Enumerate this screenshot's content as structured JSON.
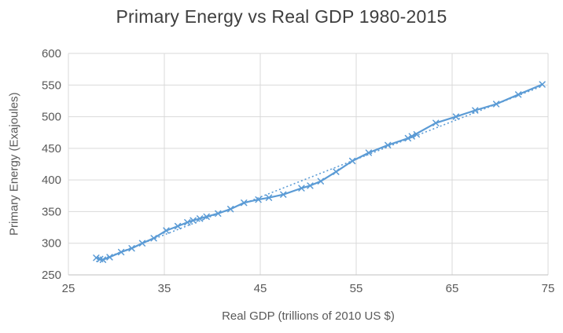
{
  "styles": {
    "accent": "#5B9BD5",
    "grid_color": "#D9D9D9",
    "axis_color": "#BFBFBF",
    "text_color": "#595959",
    "title_color": "#3F3F3F"
  },
  "chart_data": {
    "type": "scatter",
    "title": "Primary Energy vs Real GDP 1980-2015",
    "xlabel": "Real GDP (trillions of 2010 US $)",
    "ylabel": "Primary Energy (Exajoules)",
    "xlim": [
      25,
      75
    ],
    "ylim": [
      250,
      600
    ],
    "x_ticks": [
      25,
      35,
      45,
      55,
      65,
      75
    ],
    "y_ticks": [
      250,
      300,
      350,
      400,
      450,
      500,
      550,
      600
    ],
    "grid": true,
    "legend": false,
    "series": [
      {
        "name": "Primary Energy vs Real GDP 1980-2015",
        "color": "#5B9BD5",
        "marker": "x",
        "line_style": "solid",
        "x": [
          27.9,
          28.3,
          28.6,
          29.3,
          30.5,
          31.6,
          32.7,
          33.9,
          35.2,
          36.4,
          37.4,
          38.0,
          38.7,
          39.4,
          40.6,
          41.9,
          43.3,
          44.8,
          45.9,
          47.4,
          49.3,
          50.2,
          51.3,
          52.9,
          54.6,
          56.3,
          58.3,
          60.4,
          61.3,
          60.8,
          63.3,
          65.4,
          67.4,
          69.6,
          71.9,
          74.4
        ],
        "y": [
          277,
          275,
          274,
          278,
          286,
          292,
          300,
          308,
          320,
          327,
          333,
          336,
          339,
          342,
          347,
          354,
          364,
          369,
          372,
          377,
          387,
          391,
          398,
          413,
          430,
          443,
          455,
          466,
          472,
          469,
          490,
          500,
          510,
          520,
          535,
          551
        ]
      },
      {
        "name": "Linear trendline",
        "color": "#5B9BD5",
        "marker": "none",
        "line_style": "dotted",
        "derived": "linear-fit-of-series-0"
      }
    ]
  }
}
